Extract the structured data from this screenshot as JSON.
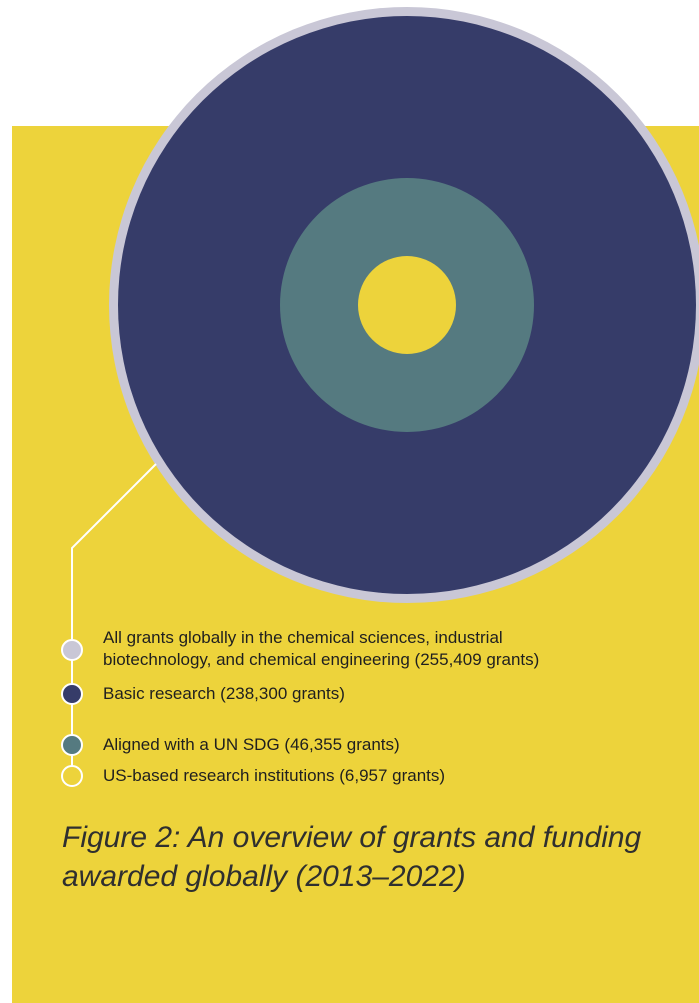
{
  "legend": [
    {
      "text": "All grants globally in the chemical sciences, industrial biotechnology, and chemical engineering (255,409 grants)",
      "line1": "All grants globally in the chemical sciences, industrial",
      "line2": "biotechnology, and chemical engineering (255,409 grants)",
      "grants": 255409,
      "color": "#c9c7d6"
    },
    {
      "text": "Basic research (238,300 grants)",
      "grants": 238300,
      "color": "#363c69"
    },
    {
      "text": "Aligned with a UN SDG (46,355 grants)",
      "grants": 46355,
      "color": "#557a80"
    },
    {
      "text": "US-based research institutions (6,957 grants)",
      "grants": 6957,
      "color": "#edd33b"
    }
  ],
  "caption_line1": "Figure 2: An overview of grants and funding",
  "caption_line2": "awarded globally (2013–2022)",
  "colors": {
    "background_panel": "#edd33b",
    "connector": "#ffffff"
  }
}
